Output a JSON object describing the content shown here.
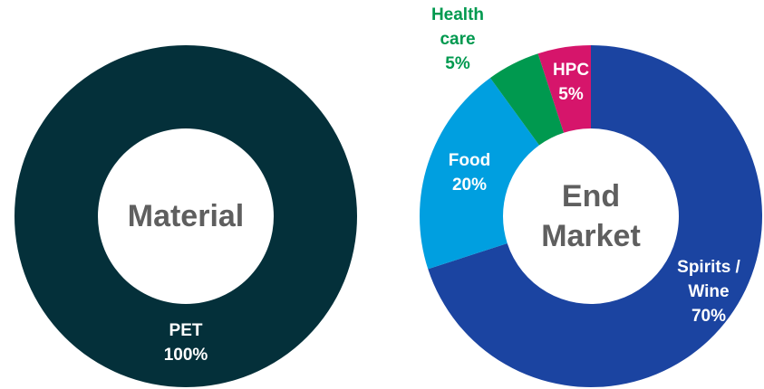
{
  "chart_data": [
    {
      "type": "donut",
      "center_label": "Material",
      "categories": [
        "PET"
      ],
      "values": [
        100
      ],
      "value_labels": [
        "100%"
      ],
      "colors": [
        "#04303a"
      ]
    },
    {
      "type": "donut",
      "center_label": "End Market",
      "categories": [
        "Spirits / Wine",
        "Food",
        "Health care",
        "HPC"
      ],
      "values": [
        70,
        20,
        5,
        5
      ],
      "value_labels": [
        "70%",
        "20%",
        "5%",
        "5%"
      ],
      "colors": [
        "#1b44a1",
        "#009fe0",
        "#00994f",
        "#d6156b"
      ]
    }
  ]
}
